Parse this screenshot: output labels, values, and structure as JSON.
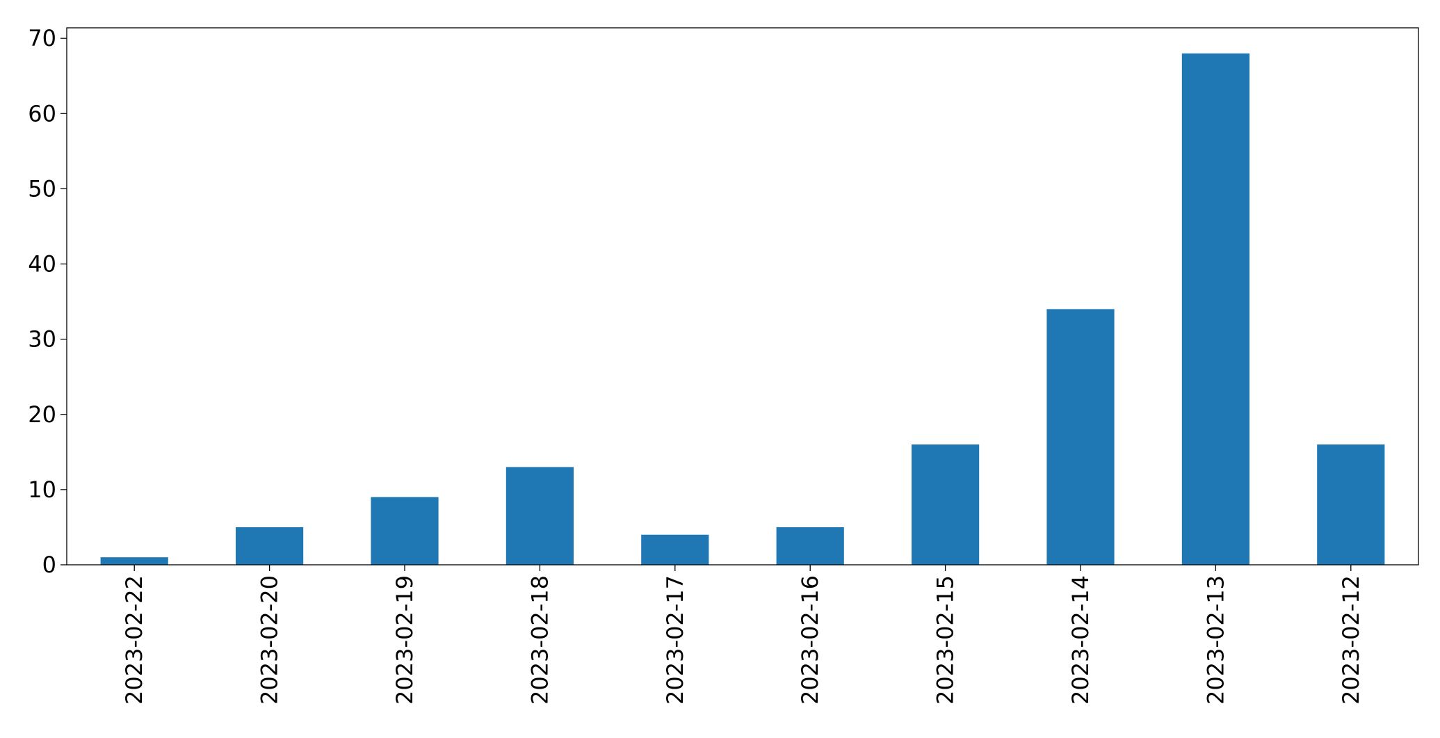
{
  "chart_data": {
    "type": "bar",
    "title": "",
    "xlabel": "",
    "ylabel": "",
    "categories": [
      "2023-02-22",
      "2023-02-20",
      "2023-02-19",
      "2023-02-18",
      "2023-02-17",
      "2023-02-16",
      "2023-02-15",
      "2023-02-14",
      "2023-02-13",
      "2023-02-12"
    ],
    "values": [
      1,
      5,
      9,
      13,
      4,
      5,
      16,
      34,
      68,
      16
    ],
    "ylim": [
      0,
      71.4
    ],
    "yticks": [
      0,
      10,
      20,
      30,
      40,
      50,
      60,
      70
    ],
    "grid": false,
    "legend": "none",
    "bar_color": "#1f77b4"
  }
}
